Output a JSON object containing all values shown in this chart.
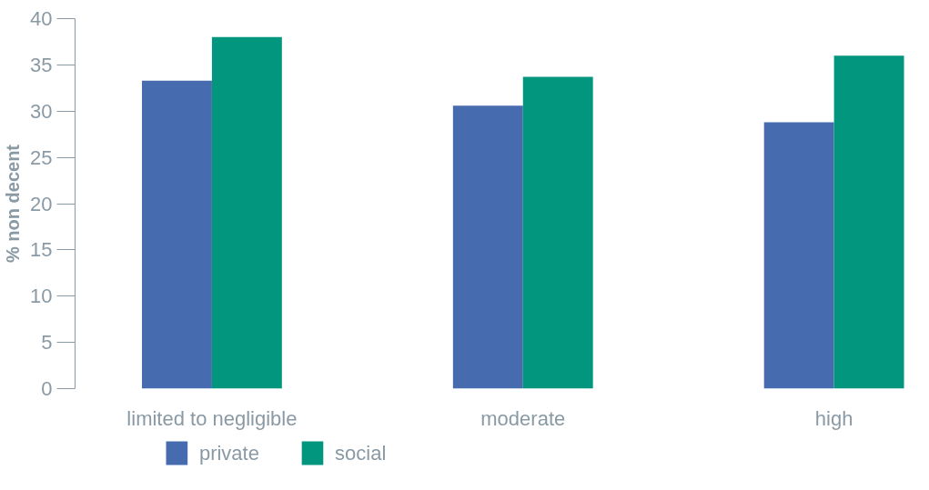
{
  "chart_data": {
    "type": "bar",
    "ylabel": "% non decent",
    "categories": [
      "limited to negligible",
      "moderate",
      "high"
    ],
    "series": [
      {
        "name": "private",
        "color": "#466baf",
        "values": [
          33.3,
          30.6,
          28.8
        ]
      },
      {
        "name": "social",
        "color": "#03967e",
        "values": [
          38,
          33.7,
          36
        ]
      }
    ],
    "ylim": [
      0,
      40
    ],
    "yticks": [
      0,
      5,
      10,
      15,
      20,
      25,
      30,
      35,
      40
    ],
    "grid": false,
    "legend": "bottom left"
  }
}
